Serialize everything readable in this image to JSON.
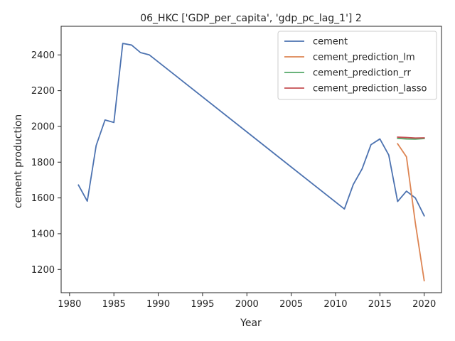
{
  "chart_data": {
    "type": "line",
    "title": "06_HKC ['GDP_per_capita', 'gdp_pc_lag_1'] 2",
    "xlabel": "Year",
    "ylabel": "cement production",
    "xlim": [
      1979.05,
      2021.95
    ],
    "ylim": [
      1070,
      2560
    ],
    "x_ticks": [
      1980,
      1985,
      1990,
      1995,
      2000,
      2005,
      2010,
      2015,
      2020
    ],
    "y_ticks": [
      1200,
      1400,
      1600,
      1800,
      2000,
      2200,
      2400
    ],
    "grid": false,
    "legend_position": "top-right",
    "series": [
      {
        "name": "cement",
        "color": "#4c72b0",
        "x": [
          1981,
          1982,
          1983,
          1984,
          1985,
          1986,
          1987,
          1988,
          1989,
          2011,
          2012,
          2013,
          2014,
          2015,
          2016,
          2017,
          2018,
          2019,
          2020
        ],
        "y": [
          1672,
          1582,
          1893,
          2036,
          2022,
          2464,
          2455,
          2413,
          2400,
          1538,
          1675,
          1763,
          1898,
          1930,
          1840,
          1580,
          1638,
          1600,
          1500
        ]
      },
      {
        "name": "cement_prediction_lm",
        "color": "#dd8452",
        "x": [
          2017,
          2018,
          2019,
          2020
        ],
        "y": [
          1903,
          1830,
          1460,
          1137
        ]
      },
      {
        "name": "cement_prediction_rr",
        "color": "#55a868",
        "x": [
          2017,
          2018,
          2019,
          2020
        ],
        "y": [
          1933,
          1930,
          1929,
          1932
        ]
      },
      {
        "name": "cement_prediction_lasso",
        "color": "#c44e52",
        "x": [
          2017,
          2018,
          2019,
          2020
        ],
        "y": [
          1940,
          1938,
          1935,
          1936
        ]
      }
    ]
  }
}
